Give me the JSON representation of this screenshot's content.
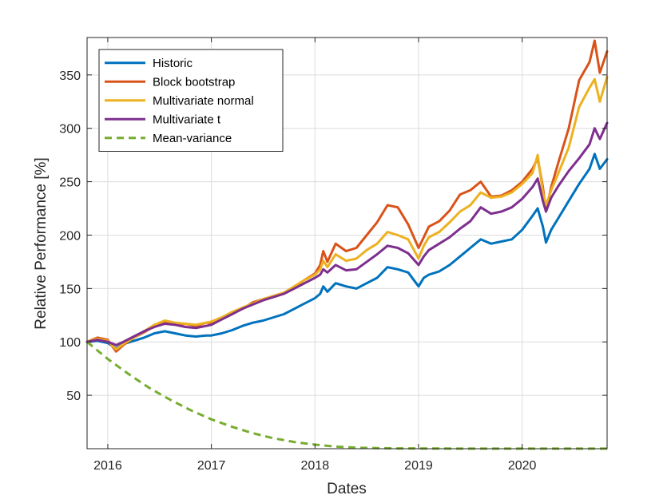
{
  "chart_data": {
    "type": "line",
    "title": "",
    "xlabel": "Dates",
    "ylabel": "Relative Performance [%]",
    "xlim": [
      2015.8,
      2020.82
    ],
    "ylim": [
      0,
      385
    ],
    "grid": true,
    "legend_position": "top-left",
    "x_ticks": [
      2016,
      2017,
      2018,
      2019,
      2020
    ],
    "x_tick_labels": [
      "2016",
      "2017",
      "2018",
      "2019",
      "2020"
    ],
    "y_ticks": [
      50,
      100,
      150,
      200,
      250,
      300,
      350
    ],
    "y_tick_labels": [
      "50",
      "100",
      "150",
      "200",
      "250",
      "300",
      "350"
    ],
    "series": [
      {
        "name": "Historic",
        "color": "#0072BD",
        "dash": "solid",
        "points": [
          [
            2015.8,
            100
          ],
          [
            2015.9,
            101
          ],
          [
            2016.0,
            99
          ],
          [
            2016.08,
            94
          ],
          [
            2016.15,
            98
          ],
          [
            2016.25,
            101
          ],
          [
            2016.35,
            104
          ],
          [
            2016.45,
            108
          ],
          [
            2016.55,
            110
          ],
          [
            2016.65,
            108
          ],
          [
            2016.75,
            106
          ],
          [
            2016.85,
            105
          ],
          [
            2016.95,
            106
          ],
          [
            2017.0,
            106
          ],
          [
            2017.1,
            108
          ],
          [
            2017.2,
            111
          ],
          [
            2017.3,
            115
          ],
          [
            2017.4,
            118
          ],
          [
            2017.5,
            120
          ],
          [
            2017.6,
            123
          ],
          [
            2017.7,
            126
          ],
          [
            2017.8,
            131
          ],
          [
            2017.9,
            136
          ],
          [
            2018.0,
            141
          ],
          [
            2018.05,
            145
          ],
          [
            2018.08,
            152
          ],
          [
            2018.12,
            147
          ],
          [
            2018.2,
            155
          ],
          [
            2018.3,
            152
          ],
          [
            2018.4,
            150
          ],
          [
            2018.5,
            155
          ],
          [
            2018.6,
            160
          ],
          [
            2018.7,
            170
          ],
          [
            2018.8,
            168
          ],
          [
            2018.9,
            165
          ],
          [
            2019.0,
            152
          ],
          [
            2019.05,
            160
          ],
          [
            2019.1,
            163
          ],
          [
            2019.2,
            166
          ],
          [
            2019.3,
            172
          ],
          [
            2019.4,
            180
          ],
          [
            2019.5,
            188
          ],
          [
            2019.6,
            196
          ],
          [
            2019.7,
            192
          ],
          [
            2019.8,
            194
          ],
          [
            2019.9,
            196
          ],
          [
            2020.0,
            205
          ],
          [
            2020.1,
            218
          ],
          [
            2020.15,
            225
          ],
          [
            2020.2,
            208
          ],
          [
            2020.23,
            193
          ],
          [
            2020.28,
            205
          ],
          [
            2020.35,
            216
          ],
          [
            2020.45,
            232
          ],
          [
            2020.55,
            248
          ],
          [
            2020.65,
            262
          ],
          [
            2020.7,
            276
          ],
          [
            2020.75,
            262
          ],
          [
            2020.82,
            271
          ]
        ]
      },
      {
        "name": "Block bootstrap",
        "color": "#D95319",
        "dash": "solid",
        "points": [
          [
            2015.8,
            100
          ],
          [
            2015.9,
            104
          ],
          [
            2016.0,
            102
          ],
          [
            2016.08,
            91
          ],
          [
            2016.15,
            97
          ],
          [
            2016.25,
            104
          ],
          [
            2016.35,
            109
          ],
          [
            2016.45,
            115
          ],
          [
            2016.55,
            118
          ],
          [
            2016.65,
            116
          ],
          [
            2016.75,
            117
          ],
          [
            2016.85,
            115
          ],
          [
            2016.95,
            118
          ],
          [
            2017.0,
            118
          ],
          [
            2017.1,
            122
          ],
          [
            2017.2,
            127
          ],
          [
            2017.3,
            131
          ],
          [
            2017.4,
            137
          ],
          [
            2017.5,
            140
          ],
          [
            2017.6,
            143
          ],
          [
            2017.7,
            146
          ],
          [
            2017.8,
            151
          ],
          [
            2017.9,
            158
          ],
          [
            2018.0,
            164
          ],
          [
            2018.05,
            172
          ],
          [
            2018.08,
            185
          ],
          [
            2018.12,
            175
          ],
          [
            2018.2,
            192
          ],
          [
            2018.3,
            185
          ],
          [
            2018.4,
            188
          ],
          [
            2018.5,
            200
          ],
          [
            2018.6,
            212
          ],
          [
            2018.7,
            228
          ],
          [
            2018.8,
            226
          ],
          [
            2018.9,
            210
          ],
          [
            2019.0,
            188
          ],
          [
            2019.05,
            198
          ],
          [
            2019.1,
            208
          ],
          [
            2019.2,
            213
          ],
          [
            2019.3,
            223
          ],
          [
            2019.4,
            238
          ],
          [
            2019.5,
            242
          ],
          [
            2019.6,
            250
          ],
          [
            2019.7,
            236
          ],
          [
            2019.8,
            237
          ],
          [
            2019.9,
            242
          ],
          [
            2020.0,
            250
          ],
          [
            2020.1,
            262
          ],
          [
            2020.15,
            272
          ],
          [
            2020.2,
            245
          ],
          [
            2020.23,
            222
          ],
          [
            2020.28,
            245
          ],
          [
            2020.35,
            268
          ],
          [
            2020.45,
            300
          ],
          [
            2020.55,
            345
          ],
          [
            2020.65,
            362
          ],
          [
            2020.7,
            382
          ],
          [
            2020.75,
            352
          ],
          [
            2020.82,
            372
          ]
        ]
      },
      {
        "name": "Multivariate normal",
        "color": "#EDB120",
        "dash": "solid",
        "points": [
          [
            2015.8,
            100
          ],
          [
            2015.9,
            103
          ],
          [
            2016.0,
            101
          ],
          [
            2016.08,
            93
          ],
          [
            2016.15,
            98
          ],
          [
            2016.25,
            104
          ],
          [
            2016.35,
            110
          ],
          [
            2016.45,
            116
          ],
          [
            2016.55,
            120
          ],
          [
            2016.65,
            118
          ],
          [
            2016.75,
            117
          ],
          [
            2016.85,
            116
          ],
          [
            2016.95,
            118
          ],
          [
            2017.0,
            119
          ],
          [
            2017.1,
            123
          ],
          [
            2017.2,
            128
          ],
          [
            2017.3,
            132
          ],
          [
            2017.4,
            136
          ],
          [
            2017.5,
            140
          ],
          [
            2017.6,
            143
          ],
          [
            2017.7,
            146
          ],
          [
            2017.8,
            152
          ],
          [
            2017.9,
            158
          ],
          [
            2018.0,
            163
          ],
          [
            2018.05,
            168
          ],
          [
            2018.08,
            176
          ],
          [
            2018.12,
            170
          ],
          [
            2018.2,
            182
          ],
          [
            2018.3,
            176
          ],
          [
            2018.4,
            178
          ],
          [
            2018.5,
            186
          ],
          [
            2018.6,
            192
          ],
          [
            2018.7,
            203
          ],
          [
            2018.8,
            200
          ],
          [
            2018.9,
            196
          ],
          [
            2019.0,
            178
          ],
          [
            2019.05,
            190
          ],
          [
            2019.1,
            198
          ],
          [
            2019.2,
            203
          ],
          [
            2019.3,
            212
          ],
          [
            2019.4,
            222
          ],
          [
            2019.5,
            228
          ],
          [
            2019.6,
            240
          ],
          [
            2019.7,
            235
          ],
          [
            2019.8,
            236
          ],
          [
            2019.9,
            240
          ],
          [
            2020.0,
            248
          ],
          [
            2020.1,
            258
          ],
          [
            2020.15,
            275
          ],
          [
            2020.2,
            240
          ],
          [
            2020.23,
            228
          ],
          [
            2020.28,
            242
          ],
          [
            2020.35,
            258
          ],
          [
            2020.45,
            282
          ],
          [
            2020.55,
            320
          ],
          [
            2020.65,
            338
          ],
          [
            2020.7,
            346
          ],
          [
            2020.75,
            325
          ],
          [
            2020.82,
            348
          ]
        ]
      },
      {
        "name": "Multivariate t",
        "color": "#7E2F8E",
        "dash": "solid",
        "points": [
          [
            2015.8,
            100
          ],
          [
            2015.9,
            102
          ],
          [
            2016.0,
            100
          ],
          [
            2016.08,
            97
          ],
          [
            2016.15,
            100
          ],
          [
            2016.25,
            105
          ],
          [
            2016.35,
            110
          ],
          [
            2016.45,
            114
          ],
          [
            2016.55,
            117
          ],
          [
            2016.65,
            116
          ],
          [
            2016.75,
            114
          ],
          [
            2016.85,
            113
          ],
          [
            2016.95,
            115
          ],
          [
            2017.0,
            116
          ],
          [
            2017.1,
            121
          ],
          [
            2017.2,
            126
          ],
          [
            2017.3,
            131
          ],
          [
            2017.4,
            135
          ],
          [
            2017.5,
            139
          ],
          [
            2017.6,
            142
          ],
          [
            2017.7,
            145
          ],
          [
            2017.8,
            150
          ],
          [
            2017.9,
            155
          ],
          [
            2018.0,
            160
          ],
          [
            2018.05,
            163
          ],
          [
            2018.08,
            168
          ],
          [
            2018.12,
            165
          ],
          [
            2018.2,
            172
          ],
          [
            2018.3,
            167
          ],
          [
            2018.4,
            168
          ],
          [
            2018.5,
            175
          ],
          [
            2018.6,
            182
          ],
          [
            2018.7,
            190
          ],
          [
            2018.8,
            188
          ],
          [
            2018.9,
            183
          ],
          [
            2019.0,
            172
          ],
          [
            2019.05,
            180
          ],
          [
            2019.1,
            186
          ],
          [
            2019.2,
            192
          ],
          [
            2019.3,
            198
          ],
          [
            2019.4,
            206
          ],
          [
            2019.5,
            213
          ],
          [
            2019.6,
            226
          ],
          [
            2019.7,
            220
          ],
          [
            2019.8,
            222
          ],
          [
            2019.9,
            226
          ],
          [
            2020.0,
            234
          ],
          [
            2020.1,
            245
          ],
          [
            2020.15,
            253
          ],
          [
            2020.2,
            232
          ],
          [
            2020.23,
            222
          ],
          [
            2020.28,
            235
          ],
          [
            2020.35,
            246
          ],
          [
            2020.45,
            260
          ],
          [
            2020.55,
            272
          ],
          [
            2020.65,
            285
          ],
          [
            2020.7,
            300
          ],
          [
            2020.75,
            290
          ],
          [
            2020.82,
            305
          ]
        ]
      },
      {
        "name": "Mean-variance",
        "color": "#77AC30",
        "dash": "dashed",
        "points": [
          [
            2015.8,
            100
          ],
          [
            2016.0,
            84
          ],
          [
            2016.2,
            70
          ],
          [
            2016.4,
            57
          ],
          [
            2016.6,
            46
          ],
          [
            2016.8,
            36
          ],
          [
            2017.0,
            27.5
          ],
          [
            2017.2,
            20.5
          ],
          [
            2017.4,
            14.5
          ],
          [
            2017.6,
            9.8
          ],
          [
            2017.8,
            6.3
          ],
          [
            2018.0,
            3.8
          ],
          [
            2018.2,
            2.0
          ],
          [
            2018.4,
            1.0
          ],
          [
            2018.6,
            0.5
          ],
          [
            2018.8,
            0.3
          ],
          [
            2019.0,
            0.2
          ],
          [
            2019.5,
            0.1
          ],
          [
            2020.0,
            0.1
          ],
          [
            2020.82,
            0.1
          ]
        ]
      }
    ]
  }
}
